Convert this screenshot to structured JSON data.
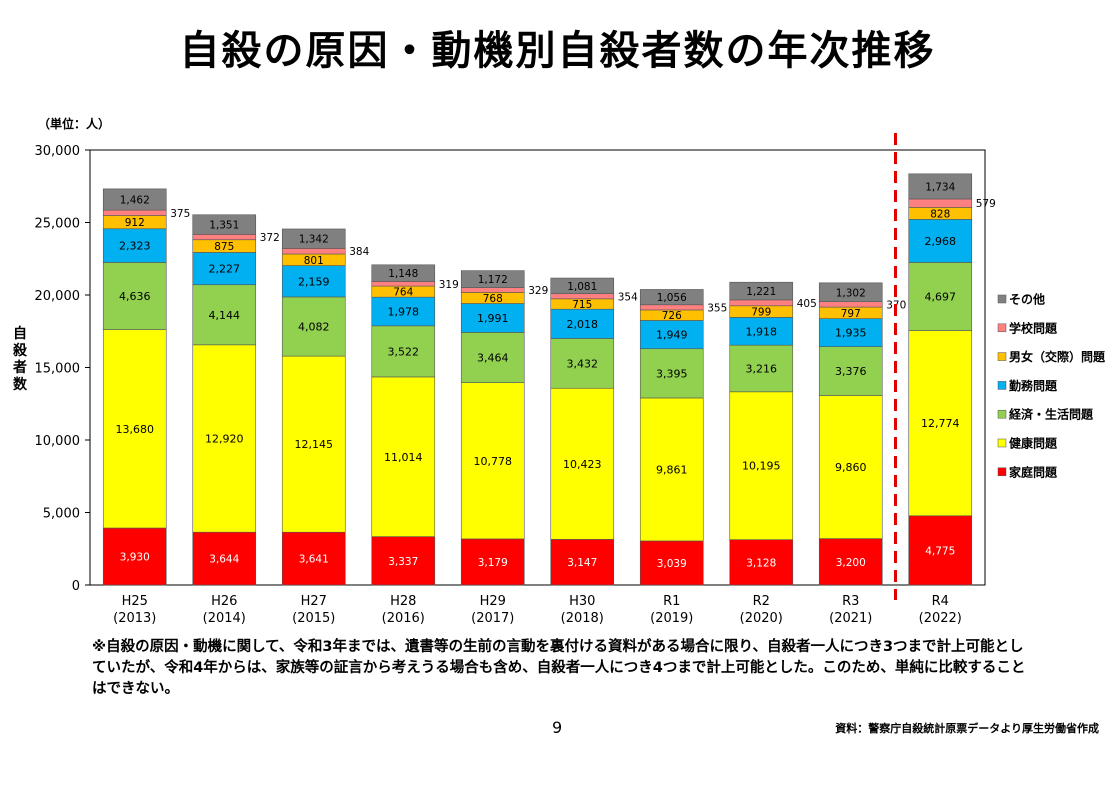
{
  "title": "自殺の原因・動機別自殺者数の年次推移",
  "note": "※自殺の原因・動機に関して、令和3年までは、遺書等の生前の言動を裏付ける資料がある場合に限り、自殺者一人につき3つまで計上可能としていたが、令和4年からは、家族等の証言から考えうる場合も含め、自殺者一人につき4つまで計上可能とした。このため、単純に比較することはできない。",
  "page_number": "9",
  "source": "資料：警察庁自殺統計原票データより厚生労働省作成",
  "chart_data": {
    "type": "bar",
    "stacked": true,
    "unit_label": "（単位：人）",
    "ylabel": "自殺者数",
    "ylim": [
      0,
      30000
    ],
    "yticks": [
      0,
      5000,
      10000,
      15000,
      20000,
      25000,
      30000
    ],
    "ytick_labels": [
      "0",
      "5,000",
      "10,000",
      "15,000",
      "20,000",
      "25,000",
      "30,000"
    ],
    "categories": [
      "H25",
      "H26",
      "H27",
      "H28",
      "H29",
      "H30",
      "R1",
      "R2",
      "R3",
      "R4"
    ],
    "category_years": [
      "(2013)",
      "(2014)",
      "(2015)",
      "(2016)",
      "(2017)",
      "(2018)",
      "(2019)",
      "(2020)",
      "(2021)",
      "(2022)"
    ],
    "divider_after_index": 8,
    "legend_position": "right",
    "series": [
      {
        "name": "家庭問題",
        "color": "#ff0000",
        "values": [
          3930,
          3644,
          3641,
          3337,
          3179,
          3147,
          3039,
          3128,
          3200,
          4775
        ],
        "labels": [
          "3,930",
          "3,644",
          "3,641",
          "3,337",
          "3,179",
          "3,147",
          "3,039",
          "3,128",
          "3,200",
          "4,775"
        ]
      },
      {
        "name": "健康問題",
        "color": "#ffff00",
        "values": [
          13680,
          12920,
          12145,
          11014,
          10778,
          10423,
          9861,
          10195,
          9860,
          12774
        ],
        "labels": [
          "13,680",
          "12,920",
          "12,145",
          "11,014",
          "10,778",
          "10,423",
          "9,861",
          "10,195",
          "9,860",
          "12,774"
        ]
      },
      {
        "name": "経済・生活問題",
        "color": "#92d050",
        "values": [
          4636,
          4144,
          4082,
          3522,
          3464,
          3432,
          3395,
          3216,
          3376,
          4697
        ],
        "labels": [
          "4,636",
          "4,144",
          "4,082",
          "3,522",
          "3,464",
          "3,432",
          "3,395",
          "3,216",
          "3,376",
          "4,697"
        ]
      },
      {
        "name": "勤務問題",
        "color": "#00b0f0",
        "values": [
          2323,
          2227,
          2159,
          1978,
          1991,
          2018,
          1949,
          1918,
          1935,
          2968
        ],
        "labels": [
          "2,323",
          "2,227",
          "2,159",
          "1,978",
          "1,991",
          "2,018",
          "1,949",
          "1,918",
          "1,935",
          "2,968"
        ]
      },
      {
        "name": "男女（交際）問題",
        "color": "#ffc000",
        "values": [
          912,
          875,
          801,
          764,
          768,
          715,
          726,
          799,
          797,
          828
        ],
        "labels": [
          "912",
          "875",
          "801",
          "764",
          "768",
          "715",
          "726",
          "799",
          "797",
          "828"
        ]
      },
      {
        "name": "学校問題",
        "color": "#ff8080",
        "values": [
          375,
          372,
          384,
          319,
          329,
          354,
          355,
          405,
          370,
          579
        ],
        "labels": [
          "375",
          "372",
          "384",
          "319",
          "329",
          "354",
          "355",
          "405",
          "370",
          "579"
        ]
      },
      {
        "name": "その他",
        "color": "#808080",
        "values": [
          1462,
          1351,
          1342,
          1148,
          1172,
          1081,
          1056,
          1221,
          1302,
          1734
        ],
        "labels": [
          "1,462",
          "1,351",
          "1,342",
          "1,148",
          "1,172",
          "1,081",
          "1,056",
          "1,221",
          "1,302",
          "1,734"
        ]
      }
    ],
    "legend_order": [
      "その他",
      "学校問題",
      "男女（交際）問題",
      "勤務問題",
      "経済・生活問題",
      "健康問題",
      "家庭問題"
    ]
  }
}
